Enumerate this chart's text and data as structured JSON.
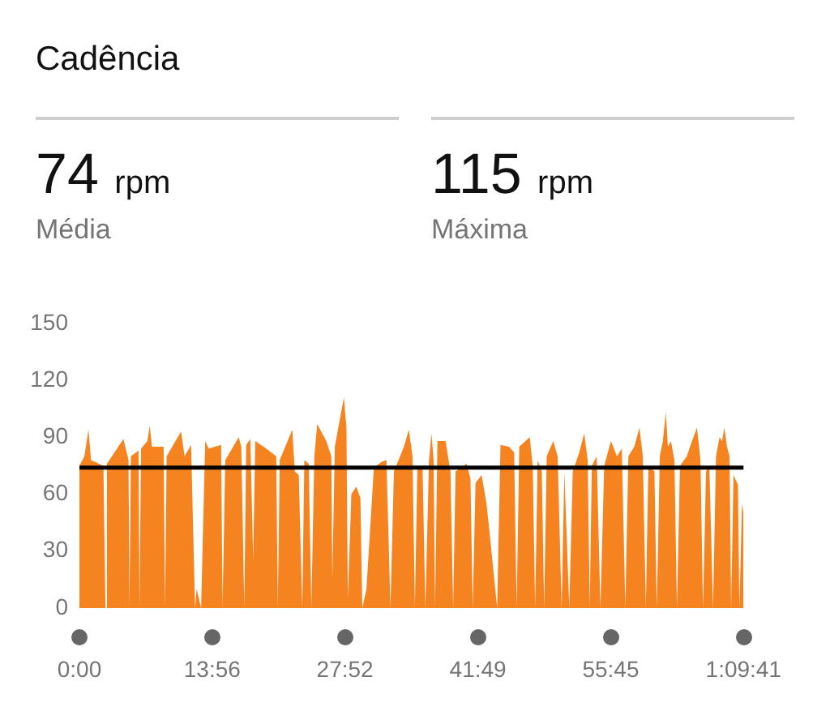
{
  "chart_data": {
    "type": "area",
    "title": "Cadência",
    "annotations": [
      "74 rpm",
      "Média",
      "115 rpm",
      "Máxima"
    ],
    "x": [
      0,
      31,
      57,
      73,
      151,
      164,
      173,
      277,
      309,
      315,
      324,
      372,
      378,
      388,
      428,
      442,
      457,
      530,
      539,
      549,
      640,
      662,
      703,
      728,
      738,
      766,
      792,
      814,
      892,
      901,
      918,
      1003,
      1019,
      1038,
      1050,
      1076,
      1094,
      1107,
      1176,
      1239,
      1249,
      1261,
      1340,
      1356,
      1381,
      1403,
      1416,
      1444,
      1460,
      1479,
      1497,
      1554,
      1586,
      1592,
      1608,
      1665,
      1681,
      1690,
      1712,
      1743,
      1769,
      1781,
      1807,
      1854,
      1901,
      1933,
      1958,
      1980,
      2043,
      2074,
      2097,
      2112,
      2128,
      2160,
      2178,
      2201,
      2216,
      2230,
      2239,
      2254,
      2305,
      2336,
      2353,
      2368,
      2438,
      2462,
      2476,
      2494,
      2532,
      2563,
      2582,
      2630,
      2651,
      2705,
      2737,
      2753,
      2769,
      2835,
      2854,
      2869,
      2885,
      2911,
      2926,
      2942,
      2983,
      3011,
      3036,
      3053,
      3084,
      3106,
      3147,
      3178,
      3200,
      3213,
      3226,
      3257,
      3280,
      3304,
      3346,
      3384,
      3415,
      3437,
      3456,
      3493,
      3526,
      3547,
      3566,
      3582,
      3620,
      3635,
      3654,
      3673,
      3692,
      3705,
      3724,
      3746,
      3762,
      3781,
      3824,
      3857,
      3888,
      3910,
      3926,
      3945,
      3966,
      3989,
      4008,
      4030,
      4046,
      4061,
      4077,
      4093,
      4103,
      4118,
      4146,
      4155,
      4172,
      4181
    ],
    "values": [
      75,
      80,
      94,
      78,
      75,
      0,
      76,
      89,
      78,
      0,
      80,
      83,
      0,
      84,
      88,
      96,
      85,
      85,
      0,
      80,
      93,
      80,
      86,
      0,
      10,
      0,
      88,
      84,
      86,
      0,
      78,
      90,
      85,
      0,
      86,
      89,
      25,
      88,
      84,
      80,
      0,
      78,
      94,
      72,
      70,
      0,
      78,
      76,
      0,
      80,
      97,
      88,
      80,
      15,
      85,
      111,
      95,
      5,
      60,
      64,
      58,
      0,
      10,
      74,
      77,
      78,
      0,
      72,
      85,
      94,
      80,
      0,
      75,
      75,
      0,
      78,
      92,
      78,
      0,
      88,
      88,
      72,
      0,
      72,
      76,
      68,
      0,
      66,
      70,
      55,
      40,
      0,
      86,
      85,
      82,
      0,
      85,
      90,
      75,
      0,
      78,
      72,
      0,
      80,
      88,
      80,
      0,
      72,
      0,
      72,
      82,
      92,
      78,
      0,
      75,
      80,
      0,
      75,
      88,
      80,
      84,
      0,
      80,
      85,
      95,
      80,
      0,
      75,
      72,
      0,
      80,
      88,
      103,
      85,
      88,
      78,
      0,
      75,
      80,
      88,
      95,
      78,
      0,
      72,
      75,
      0,
      80,
      90,
      88,
      95,
      85,
      80,
      0,
      70,
      65,
      0,
      55,
      50
    ],
    "color": "#f5831f",
    "xlim": [
      0,
      4181
    ],
    "xticks": [
      {
        "value": 0,
        "label": "0:00"
      },
      {
        "value": 836,
        "label": "13:56"
      },
      {
        "value": 1672,
        "label": "27:52"
      },
      {
        "value": 2509,
        "label": "41:49"
      },
      {
        "value": 3345,
        "label": "55:45"
      },
      {
        "value": 4181,
        "label": "1:09:41"
      }
    ],
    "ylim": [
      0,
      150
    ],
    "yticks": [
      0,
      30,
      60,
      90,
      120,
      150
    ],
    "ref_lines": [
      {
        "axis": "y",
        "value": 74,
        "color": "#000000"
      }
    ],
    "grid": false,
    "legend": false
  }
}
